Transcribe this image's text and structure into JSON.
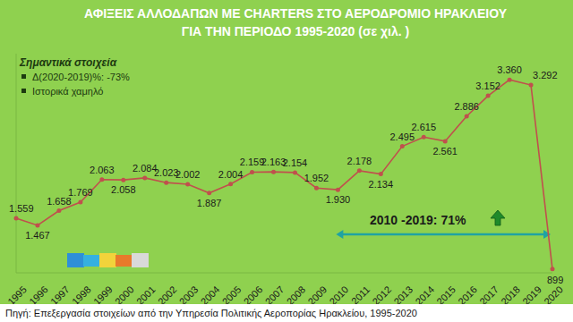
{
  "chart_data": {
    "type": "line",
    "title": "ΑΦΙΞΕΙΣ ΑΛΛΟΔΑΠΩΝ ΜΕ CHARTERS ΣΤΟ ΑΕΡΟΔΡΟΜΙΟ ΗΡΑΚΛΕΙΟΥ",
    "subtitle": "ΓΙΑ ΤΗΝ ΠΕΡΙΟΔΟ 1995-2020 (σε χιλ. )",
    "annotations": [
      "Σημαντικά στοιχεία",
      "Δ(2020-2019)%: -73%",
      "Ιστορικά χαμηλό",
      "2010 -2019: 71%"
    ],
    "source": "Πηγή: Επεξεργασία στοιχείων από την Υπηρεσία Πολιτικής Αεροπορίας Ηρακλείου, 1995-2020",
    "categories": [
      "1995",
      "1996",
      "1997",
      "1998",
      "1999",
      "2000",
      "2001",
      "2002",
      "2003",
      "2004",
      "2005",
      "2006",
      "2007",
      "2008",
      "2009",
      "2010",
      "2011",
      "2012",
      "2013",
      "2014",
      "2015",
      "2016",
      "2017",
      "2018",
      "2019",
      "2020"
    ],
    "values": [
      1559,
      1467,
      1658,
      1769,
      2063,
      2058,
      2084,
      2023,
      2002,
      1887,
      2004,
      2159,
      2163,
      2154,
      1952,
      1930,
      2178,
      2134,
      2495,
      2615,
      2561,
      2886,
      3152,
      3360,
      3292,
      899
    ],
    "value_labels": [
      "1.559",
      "1.467",
      "1.658",
      "1.769",
      "2.063",
      "2.058",
      "2.084",
      "2.023",
      "2.002",
      "1.887",
      "2.004",
      "2.159",
      "2.163",
      "2.154",
      "1.952",
      "1.930",
      "2.178",
      "2.134",
      "2.495",
      "2.615",
      "2.561",
      "2.886",
      "3.152",
      "3.360",
      "3.292",
      "899"
    ],
    "color": "#c0504d",
    "marker": "circle",
    "line_style": "solid",
    "data_labels": true,
    "tick_labels": "x",
    "grid": false,
    "ylim": [
      850,
      3700
    ],
    "yticks": []
  }
}
